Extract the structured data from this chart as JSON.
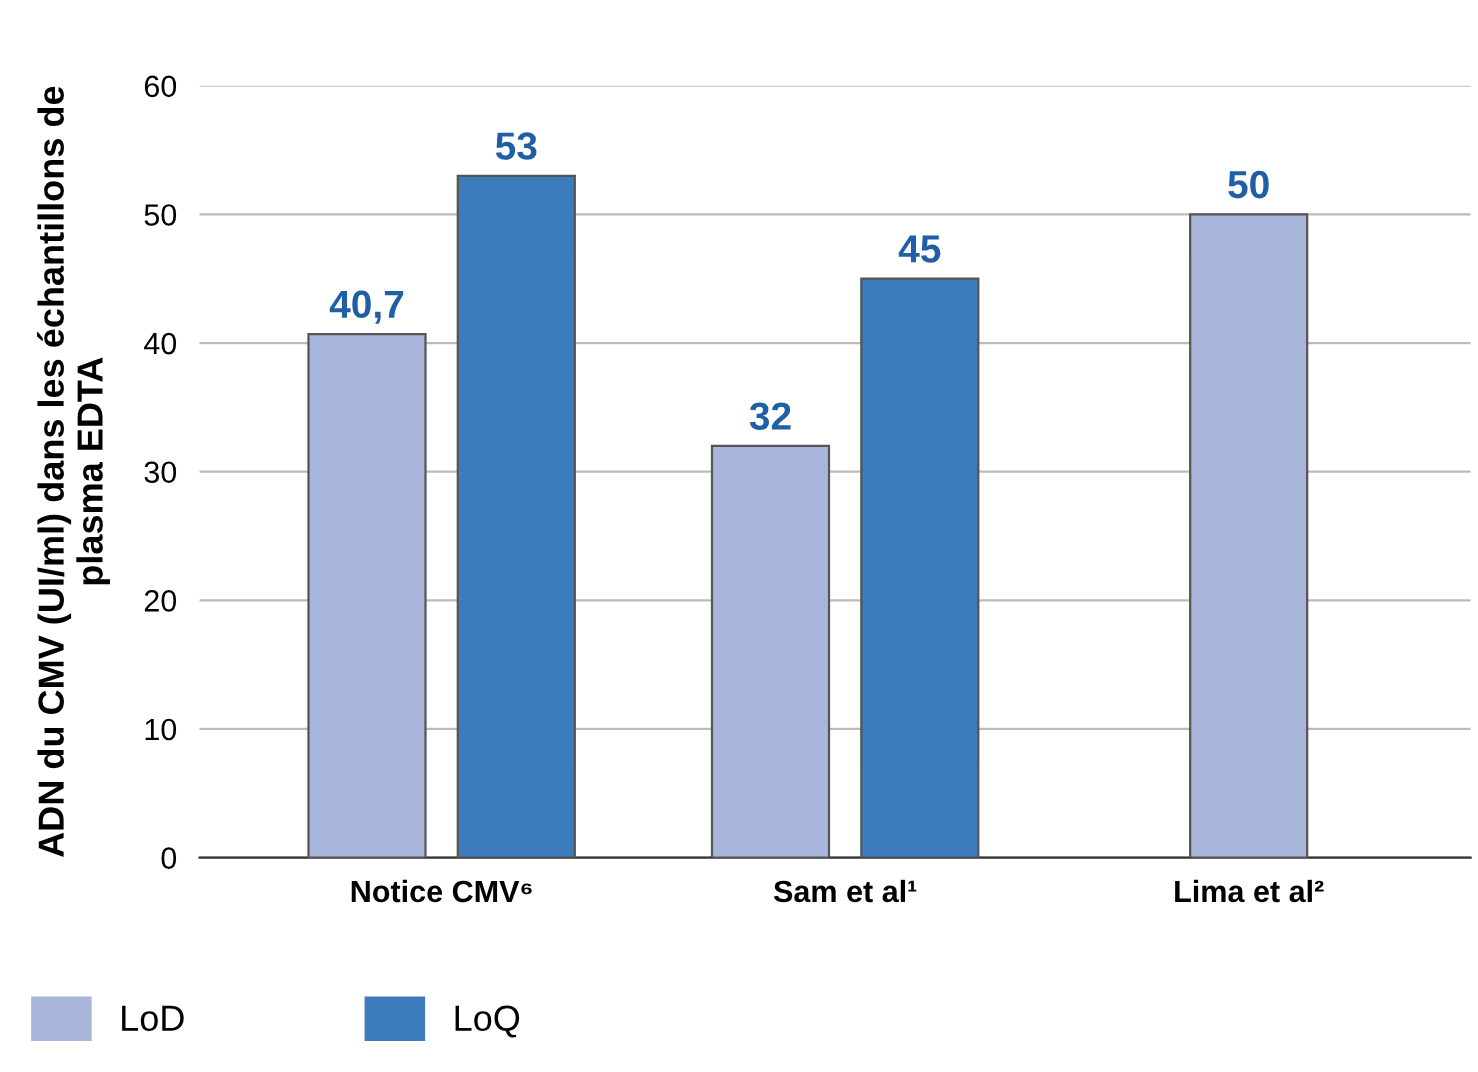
{
  "chart_data": {
    "type": "bar",
    "ylabel": "ADN du CMV (UI/ml) dans les échantillons de\nplasma EDTA",
    "categories": [
      "Notice CMV⁶",
      "Sam et al¹",
      "Lima et al²"
    ],
    "series": [
      {
        "name": "LoD",
        "color": "#a9b5da",
        "values": [
          40.7,
          32,
          50
        ],
        "value_labels": [
          "40,7",
          "32",
          "50"
        ]
      },
      {
        "name": "LoQ",
        "color": "#3d7cbc",
        "values": [
          53,
          45,
          null
        ],
        "value_labels": [
          "53",
          "45",
          null
        ]
      }
    ],
    "ylim": [
      0,
      60
    ],
    "yticks": [
      0,
      10,
      20,
      30,
      40,
      50,
      60
    ],
    "grid": "y",
    "legend": "bottom left"
  }
}
